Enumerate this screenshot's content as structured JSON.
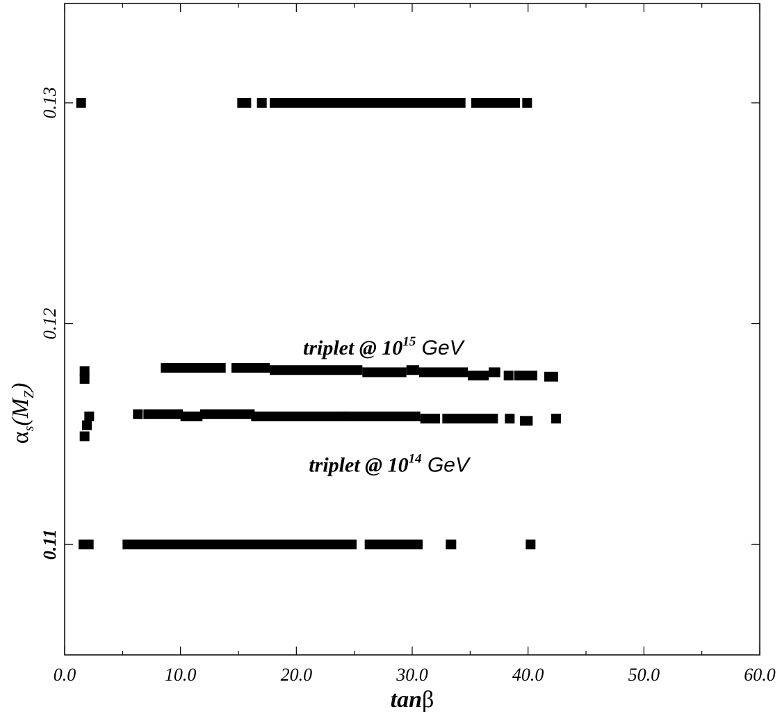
{
  "chart_data": {
    "type": "scatter",
    "xlabel": {
      "italic_part": "tan",
      "symbol_part": "β"
    },
    "ylabel": {
      "alpha": "α",
      "sub_s": "s",
      "paren_open": "(M",
      "sub_z": "Z",
      "paren_close": ")"
    },
    "xlim": [
      0,
      60
    ],
    "ylim": [
      0.105,
      0.1345
    ],
    "x_ticks": [
      0,
      10,
      20,
      30,
      40,
      50,
      60
    ],
    "x_tick_labels": [
      "0.0",
      "10.0",
      "20.0",
      "30.0",
      "40.0",
      "50.0",
      "60.0"
    ],
    "y_ticks": [
      0.11,
      0.12,
      0.13
    ],
    "y_tick_labels": [
      "0.11",
      "0.12",
      "0.13"
    ],
    "grid": false,
    "annotations": [
      {
        "text_main": "triplet @ 10",
        "sup": "15",
        "text_end": " GeV",
        "x": 27.5,
        "y": 0.1186
      },
      {
        "text_main": "triplet @ 10",
        "sup": "14",
        "text_end": " GeV",
        "x": 28.0,
        "y": 0.1133
      }
    ],
    "segments": [
      {
        "y": 0.13,
        "x0": 1.0,
        "x1": 1.5
      },
      {
        "y": 0.13,
        "x0": 14.9,
        "x1": 16.1
      },
      {
        "y": 0.13,
        "x0": 16.6,
        "x1": 17.3
      },
      {
        "y": 0.13,
        "x0": 17.7,
        "x1": 34.6
      },
      {
        "y": 0.13,
        "x0": 35.1,
        "x1": 39.3
      },
      {
        "y": 0.13,
        "x0": 39.5,
        "x1": 40.3
      },
      {
        "y": 0.11785,
        "x0": 1.3,
        "x1": 1.7
      },
      {
        "y": 0.1175,
        "x0": 1.3,
        "x1": 1.7
      },
      {
        "y": 0.118,
        "x0": 8.3,
        "x1": 13.9
      },
      {
        "y": 0.118,
        "x0": 14.4,
        "x1": 17.7
      },
      {
        "y": 0.1179,
        "x0": 17.7,
        "x1": 25.7
      },
      {
        "y": 0.1178,
        "x0": 25.7,
        "x1": 29.5
      },
      {
        "y": 0.1179,
        "x0": 29.5,
        "x1": 30.6
      },
      {
        "y": 0.1178,
        "x0": 30.6,
        "x1": 34.8
      },
      {
        "y": 0.11765,
        "x0": 34.8,
        "x1": 36.6
      },
      {
        "y": 0.1178,
        "x0": 36.6,
        "x1": 37.6
      },
      {
        "y": 0.11765,
        "x0": 37.9,
        "x1": 38.2
      },
      {
        "y": 0.11765,
        "x0": 38.8,
        "x1": 40.8
      },
      {
        "y": 0.1176,
        "x0": 41.4,
        "x1": 42.6
      },
      {
        "y": 0.1149,
        "x0": 1.3,
        "x1": 1.6
      },
      {
        "y": 0.1154,
        "x0": 1.5,
        "x1": 1.8
      },
      {
        "y": 0.1158,
        "x0": 1.7,
        "x1": 2.2
      },
      {
        "y": 0.1159,
        "x0": 5.9,
        "x1": 6.4
      },
      {
        "y": 0.1159,
        "x0": 6.8,
        "x1": 10.2
      },
      {
        "y": 0.1158,
        "x0": 10.0,
        "x1": 11.9
      },
      {
        "y": 0.1159,
        "x0": 11.7,
        "x1": 16.4
      },
      {
        "y": 0.1158,
        "x0": 16.1,
        "x1": 24.5
      },
      {
        "y": 0.1158,
        "x0": 24.0,
        "x1": 30.7
      },
      {
        "y": 0.1157,
        "x0": 30.7,
        "x1": 32.4
      },
      {
        "y": 0.1157,
        "x0": 32.6,
        "x1": 37.4
      },
      {
        "y": 0.1157,
        "x0": 38.0,
        "x1": 38.7
      },
      {
        "y": 0.1156,
        "x0": 39.3,
        "x1": 40.4
      },
      {
        "y": 0.1157,
        "x0": 42.0,
        "x1": 42.7
      },
      {
        "y": 0.11,
        "x0": 1.2,
        "x1": 2.5
      },
      {
        "y": 0.11,
        "x0": 5.0,
        "x1": 25.2
      },
      {
        "y": 0.11,
        "x0": 25.9,
        "x1": 30.9
      },
      {
        "y": 0.11,
        "x0": 32.9,
        "x1": 33.8
      },
      {
        "y": 0.11,
        "x0": 39.8,
        "x1": 40.6
      }
    ]
  }
}
